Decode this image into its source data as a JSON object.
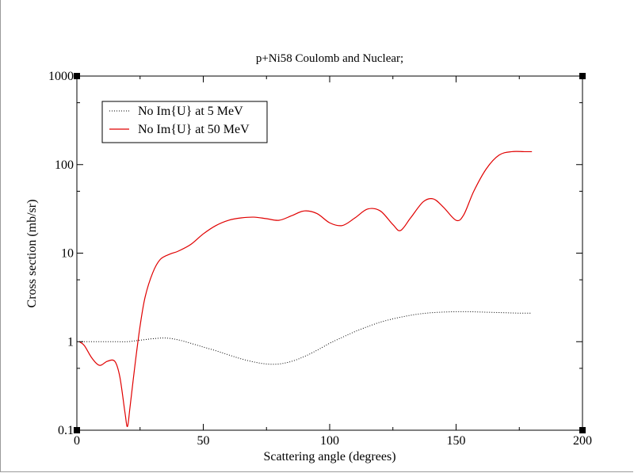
{
  "chart_data": {
    "type": "line",
    "title": "p+Ni58 Coulomb and Nuclear;",
    "xlabel": "Scattering angle (degrees)",
    "ylabel": "Cross section (mb/sr)",
    "xlim": [
      0,
      200
    ],
    "ylim": [
      0.1,
      1000
    ],
    "yscale": "log",
    "grid": false,
    "legend_position": "top-left",
    "x_ticks": [
      0,
      50,
      100,
      150,
      200
    ],
    "x_tick_labels": [
      "0",
      "50",
      "100",
      "150",
      "200"
    ],
    "y_ticks": [
      0.1,
      1,
      10,
      100,
      1000
    ],
    "y_tick_labels": [
      "0.1",
      "1",
      "10",
      "100",
      "1000"
    ],
    "series": [
      {
        "name": "No Im{U} at 5 MeV",
        "color": "#000000",
        "style": "dotted",
        "x": [
          1,
          5,
          10,
          15,
          20,
          25,
          30,
          35,
          40,
          45,
          50,
          55,
          60,
          65,
          70,
          75,
          80,
          85,
          90,
          95,
          100,
          105,
          110,
          115,
          120,
          125,
          130,
          135,
          140,
          145,
          150,
          155,
          160,
          165,
          170,
          175,
          180
        ],
        "y": [
          1.0,
          1.0,
          1.0,
          1.0,
          1.0,
          1.04,
          1.08,
          1.1,
          1.05,
          0.96,
          0.87,
          0.79,
          0.71,
          0.64,
          0.59,
          0.56,
          0.56,
          0.6,
          0.68,
          0.8,
          0.96,
          1.12,
          1.3,
          1.48,
          1.66,
          1.81,
          1.94,
          2.05,
          2.12,
          2.16,
          2.18,
          2.18,
          2.16,
          2.14,
          2.12,
          2.1,
          2.1
        ]
      },
      {
        "name": "No Im{U} at 50 MeV",
        "color": "#e00000",
        "style": "solid",
        "x": [
          1,
          3,
          6,
          9,
          12,
          15,
          17,
          19,
          20,
          21,
          23,
          25,
          27,
          30,
          33,
          37,
          40,
          45,
          50,
          55,
          60,
          65,
          70,
          75,
          80,
          85,
          90,
          95,
          100,
          105,
          110,
          115,
          120,
          125,
          128,
          132,
          137,
          141,
          145,
          150,
          153,
          157,
          162,
          167,
          172,
          177,
          180
        ],
        "y": [
          1.0,
          0.9,
          0.65,
          0.54,
          0.6,
          0.6,
          0.4,
          0.16,
          0.11,
          0.18,
          0.55,
          1.5,
          3.2,
          6.0,
          8.5,
          9.8,
          10.5,
          12.5,
          16.5,
          20.5,
          23.5,
          25.0,
          25.5,
          24.5,
          23.5,
          26.5,
          30.0,
          28.0,
          22.0,
          20.5,
          25.0,
          31.5,
          30.0,
          21.0,
          18.0,
          25.0,
          38.0,
          41.0,
          33.0,
          23.5,
          27.0,
          50.0,
          90.0,
          128.0,
          140.0,
          140.0,
          140.0
        ]
      }
    ]
  }
}
